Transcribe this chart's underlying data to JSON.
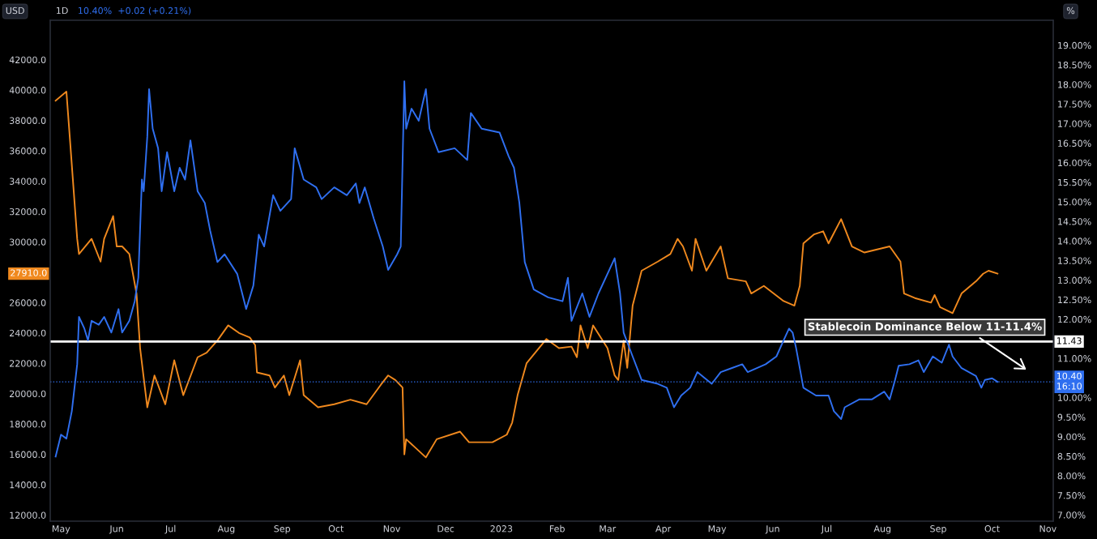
{
  "chart_data": {
    "type": "line",
    "title": "1D",
    "subtitle": "10.40%  +0.02 (+0.21%)",
    "ylabel": "USD",
    "y2label": "%",
    "xlim": [
      "2022-04-25",
      "2023-11-04"
    ],
    "xticks": [
      {
        "value": "2022-05-01",
        "label": "May"
      },
      {
        "value": "2022-06-01",
        "label": "Jun"
      },
      {
        "value": "2022-07-01",
        "label": "Jul"
      },
      {
        "value": "2022-08-01",
        "label": "Aug"
      },
      {
        "value": "2022-09-01",
        "label": "Sep"
      },
      {
        "value": "2022-10-01",
        "label": "Oct"
      },
      {
        "value": "2022-11-01",
        "label": "Nov"
      },
      {
        "value": "2022-12-01",
        "label": "Dec"
      },
      {
        "value": "2023-01-01",
        "label": "2023"
      },
      {
        "value": "2023-02-01",
        "label": "Feb"
      },
      {
        "value": "2023-03-01",
        "label": "Mar"
      },
      {
        "value": "2023-04-01",
        "label": "Apr"
      },
      {
        "value": "2023-05-01",
        "label": "May"
      },
      {
        "value": "2023-06-01",
        "label": "Jun"
      },
      {
        "value": "2023-07-01",
        "label": "Jul"
      },
      {
        "value": "2023-08-01",
        "label": "Aug"
      },
      {
        "value": "2023-09-01",
        "label": "Sep"
      },
      {
        "value": "2023-10-01",
        "label": "Oct"
      },
      {
        "value": "2023-11-01",
        "label": "Nov"
      }
    ],
    "ylim": [
      11600,
      44600
    ],
    "yticks": [
      {
        "value": 12000,
        "label": "12000.0"
      },
      {
        "value": 14000,
        "label": "14000.0"
      },
      {
        "value": 16000,
        "label": "16000.0"
      },
      {
        "value": 18000,
        "label": "18000.0"
      },
      {
        "value": 20000,
        "label": "20000.0"
      },
      {
        "value": 22000,
        "label": "22000.0"
      },
      {
        "value": 24000,
        "label": "24000.0"
      },
      {
        "value": 26000,
        "label": "26000.0"
      },
      {
        "value": 30000,
        "label": "30000.0"
      },
      {
        "value": 32000,
        "label": "32000.0"
      },
      {
        "value": 34000,
        "label": "34000.0"
      },
      {
        "value": 36000,
        "label": "36000.0"
      },
      {
        "value": 38000,
        "label": "38000.0"
      },
      {
        "value": 40000,
        "label": "40000.0"
      },
      {
        "value": 42000,
        "label": "42000.0"
      }
    ],
    "y2lim": [
      6.84,
      19.64
    ],
    "y2ticks": [
      {
        "value": 7,
        "label": "7.00%"
      },
      {
        "value": 7.5,
        "label": "7.50%"
      },
      {
        "value": 8,
        "label": "8.00%"
      },
      {
        "value": 8.5,
        "label": "8.50%"
      },
      {
        "value": 9,
        "label": "9.00%"
      },
      {
        "value": 9.5,
        "label": "9.50%"
      },
      {
        "value": 10,
        "label": "10.00%"
      },
      {
        "value": 11,
        "label": "11.00%"
      },
      {
        "value": 12,
        "label": "12.00%"
      },
      {
        "value": 12.5,
        "label": "12.50%"
      },
      {
        "value": 13,
        "label": "13.00%"
      },
      {
        "value": 13.5,
        "label": "13.50%"
      },
      {
        "value": 14,
        "label": "14.00%"
      },
      {
        "value": 14.5,
        "label": "14.50%"
      },
      {
        "value": 15,
        "label": "15.00%"
      },
      {
        "value": 15.5,
        "label": "15.50%"
      },
      {
        "value": 16,
        "label": "16.00%"
      },
      {
        "value": 16.5,
        "label": "16.50%"
      },
      {
        "value": 17,
        "label": "17.00%"
      },
      {
        "value": 17.5,
        "label": "17.50%"
      },
      {
        "value": 18,
        "label": "18.00%"
      },
      {
        "value": 18.5,
        "label": "18.50%"
      },
      {
        "value": 19,
        "label": "19.00%"
      }
    ],
    "grid": false,
    "legend": false,
    "marker": "none",
    "line_style": "solid",
    "series": [
      {
        "color": "#f0891e",
        "x": [
          "2022-04-28",
          "2022-05-04",
          "2022-05-06",
          "2022-05-10",
          "2022-05-11",
          "2022-05-18",
          "2022-05-23",
          "2022-05-25",
          "2022-05-30",
          "2022-06-01",
          "2022-06-04",
          "2022-06-08",
          "2022-06-12",
          "2022-06-14",
          "2022-06-18",
          "2022-06-22",
          "2022-06-28",
          "2022-07-03",
          "2022-07-08",
          "2022-07-16",
          "2022-07-21",
          "2022-07-27",
          "2022-08-02",
          "2022-08-08",
          "2022-08-14",
          "2022-08-17",
          "2022-08-18",
          "2022-08-25",
          "2022-08-28",
          "2022-09-02",
          "2022-09-05",
          "2022-09-11",
          "2022-09-13",
          "2022-09-21",
          "2022-09-30",
          "2022-10-09",
          "2022-10-18",
          "2022-10-26",
          "2022-10-30",
          "2022-11-03",
          "2022-11-07",
          "2022-11-08",
          "2022-11-09",
          "2022-11-20",
          "2022-11-26",
          "2022-12-09",
          "2022-12-14",
          "2022-12-27",
          "2023-01-04",
          "2023-01-07",
          "2023-01-10",
          "2023-01-15",
          "2023-01-26",
          "2023-02-02",
          "2023-02-09",
          "2023-02-12",
          "2023-02-14",
          "2023-02-18",
          "2023-02-21",
          "2023-03-01",
          "2023-03-05",
          "2023-03-07",
          "2023-03-10",
          "2023-03-12",
          "2023-03-15",
          "2023-03-20",
          "2023-03-29",
          "2023-04-05",
          "2023-04-09",
          "2023-04-12",
          "2023-04-17",
          "2023-04-19",
          "2023-04-25",
          "2023-05-03",
          "2023-05-07",
          "2023-05-17",
          "2023-05-20",
          "2023-05-27",
          "2023-06-07",
          "2023-06-13",
          "2023-06-16",
          "2023-06-18",
          "2023-06-24",
          "2023-06-29",
          "2023-07-02",
          "2023-07-09",
          "2023-07-15",
          "2023-07-22",
          "2023-08-05",
          "2023-08-11",
          "2023-08-13",
          "2023-08-19",
          "2023-08-28",
          "2023-08-30",
          "2023-09-02",
          "2023-09-09",
          "2023-09-14",
          "2023-09-22",
          "2023-09-26",
          "2023-09-29",
          "2023-10-04"
        ],
        "values": [
          39300,
          39900,
          36700,
          30200,
          29200,
          30200,
          28700,
          30200,
          31700,
          29700,
          29700,
          29200,
          26600,
          23000,
          19100,
          21200,
          19300,
          22200,
          19900,
          22400,
          22700,
          23500,
          24500,
          24000,
          23700,
          23200,
          21400,
          21200,
          20400,
          21200,
          19900,
          22200,
          19900,
          19100,
          19300,
          19600,
          19300,
          20600,
          21200,
          20900,
          20400,
          16000,
          17000,
          15800,
          17000,
          17500,
          16800,
          16800,
          17300,
          18100,
          19900,
          22000,
          23600,
          23000,
          23100,
          22400,
          24500,
          23000,
          24500,
          23000,
          21200,
          20900,
          23500,
          21700,
          25800,
          28100,
          28700,
          29200,
          30200,
          29700,
          28100,
          30200,
          28100,
          29700,
          27600,
          27400,
          26600,
          27100,
          26100,
          25800,
          27100,
          29900,
          30500,
          30700,
          29900,
          31500,
          29700,
          29300,
          29700,
          28700,
          26600,
          26300,
          26000,
          26500,
          25700,
          25300,
          26600,
          27400,
          27900,
          28100,
          27910
        ]
      },
      {
        "color": "#2f6ff0",
        "axis": "y2",
        "x": [
          "2022-04-28",
          "2022-05-01",
          "2022-05-04",
          "2022-05-07",
          "2022-05-10",
          "2022-05-11",
          "2022-05-14",
          "2022-05-16",
          "2022-05-18",
          "2022-05-22",
          "2022-05-25",
          "2022-05-29",
          "2022-06-02",
          "2022-06-04",
          "2022-06-08",
          "2022-06-11",
          "2022-06-13",
          "2022-06-15",
          "2022-06-16",
          "2022-06-18",
          "2022-06-19",
          "2022-06-21",
          "2022-06-24",
          "2022-06-26",
          "2022-06-29",
          "2022-07-03",
          "2022-07-06",
          "2022-07-09",
          "2022-07-12",
          "2022-07-16",
          "2022-07-20",
          "2022-07-23",
          "2022-07-27",
          "2022-07-31",
          "2022-08-07",
          "2022-08-12",
          "2022-08-16",
          "2022-08-19",
          "2022-08-22",
          "2022-08-27",
          "2022-08-31",
          "2022-09-06",
          "2022-09-08",
          "2022-09-13",
          "2022-09-20",
          "2022-09-23",
          "2022-09-30",
          "2022-10-07",
          "2022-10-12",
          "2022-10-14",
          "2022-10-17",
          "2022-10-22",
          "2022-10-27",
          "2022-10-30",
          "2022-11-04",
          "2022-11-06",
          "2022-11-08",
          "2022-11-09",
          "2022-11-12",
          "2022-11-16",
          "2022-11-20",
          "2022-11-22",
          "2022-11-27",
          "2022-12-06",
          "2022-12-13",
          "2022-12-15",
          "2022-12-21",
          "2022-12-31",
          "2023-01-05",
          "2023-01-08",
          "2023-01-11",
          "2023-01-14",
          "2023-01-19",
          "2023-01-27",
          "2023-02-04",
          "2023-02-07",
          "2023-02-09",
          "2023-02-15",
          "2023-02-19",
          "2023-02-24",
          "2023-03-02",
          "2023-03-05",
          "2023-03-08",
          "2023-03-10",
          "2023-03-15",
          "2023-03-20",
          "2023-03-29",
          "2023-04-03",
          "2023-04-07",
          "2023-04-11",
          "2023-04-16",
          "2023-04-20",
          "2023-04-28",
          "2023-05-03",
          "2023-05-09",
          "2023-05-15",
          "2023-05-18",
          "2023-05-28",
          "2023-06-03",
          "2023-06-07",
          "2023-06-10",
          "2023-06-12",
          "2023-06-14",
          "2023-06-18",
          "2023-06-25",
          "2023-07-02",
          "2023-07-05",
          "2023-07-09",
          "2023-07-11",
          "2023-07-19",
          "2023-07-26",
          "2023-08-02",
          "2023-08-05",
          "2023-08-08",
          "2023-08-10",
          "2023-08-16",
          "2023-08-21",
          "2023-08-24",
          "2023-08-29",
          "2023-09-03",
          "2023-09-07",
          "2023-09-09",
          "2023-09-14",
          "2023-09-22",
          "2023-09-25",
          "2023-09-27",
          "2023-10-01",
          "2023-10-04"
        ],
        "values": [
          8.49,
          9.05,
          8.95,
          9.65,
          10.85,
          12.06,
          11.76,
          11.46,
          11.96,
          11.86,
          12.06,
          11.66,
          12.26,
          11.66,
          11.96,
          12.46,
          13.06,
          15.57,
          15.27,
          16.67,
          17.88,
          16.87,
          16.37,
          15.27,
          16.27,
          15.27,
          15.87,
          15.57,
          16.57,
          15.27,
          14.97,
          14.26,
          13.46,
          13.66,
          13.16,
          12.26,
          12.86,
          14.16,
          13.86,
          15.17,
          14.77,
          15.07,
          16.37,
          15.57,
          15.37,
          15.07,
          15.37,
          15.17,
          15.47,
          14.97,
          15.37,
          14.57,
          13.86,
          13.26,
          13.66,
          13.86,
          18.08,
          16.87,
          17.38,
          17.07,
          17.88,
          16.87,
          16.27,
          16.37,
          16.07,
          17.27,
          16.87,
          16.77,
          16.17,
          15.87,
          14.97,
          13.46,
          12.76,
          12.56,
          12.46,
          13.06,
          11.96,
          12.66,
          12.06,
          12.66,
          13.26,
          13.56,
          12.66,
          11.66,
          11.05,
          10.45,
          10.35,
          10.25,
          9.75,
          10.05,
          10.25,
          10.65,
          10.35,
          10.65,
          10.75,
          10.85,
          10.65,
          10.85,
          11.05,
          11.46,
          11.76,
          11.66,
          11.25,
          10.25,
          10.05,
          10.05,
          9.65,
          9.45,
          9.75,
          9.95,
          9.95,
          10.15,
          9.95,
          10.45,
          10.81,
          10.85,
          10.95,
          10.65,
          11.05,
          10.89,
          11.35,
          11.05,
          10.75,
          10.55,
          10.25,
          10.45,
          10.49,
          10.4
        ]
      }
    ],
    "ref_lines": [
      {
        "axis": "y2",
        "value": 11.43,
        "label": "11.43",
        "color": "#ffffff",
        "line_style": "solid"
      },
      {
        "axis": "y2",
        "value": 10.4,
        "label": "10.40\n16:10",
        "color": "#2f6ff0",
        "line_style": "dotted"
      }
    ],
    "annotations": [
      "27910.0",
      "Stablecoin Dominance Below 11-11.4%"
    ]
  }
}
